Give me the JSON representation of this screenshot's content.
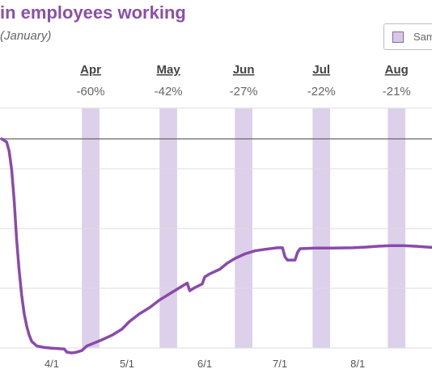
{
  "header": {
    "title": "in employees working",
    "subtitle": "(January)"
  },
  "legend": {
    "label": "Sam",
    "swatch_color": "#d8c8e6"
  },
  "colors": {
    "line": "#8a4aab",
    "band": "#ddd0ea",
    "grid": "#dddddd",
    "baseline": "#666666"
  },
  "chart_data": {
    "type": "line",
    "title": "in employees working",
    "subtitle": "(January)",
    "xlabel": "",
    "ylabel": "",
    "grid": "horizontal",
    "legend_position": "top-right",
    "x_tick_labels": [
      {
        "label": "4/1",
        "day": 0
      },
      {
        "label": "5/1",
        "day": 30
      },
      {
        "label": "6/1",
        "day": 61
      },
      {
        "label": "7/1",
        "day": 91
      },
      {
        "label": "8/1",
        "day": 122
      }
    ],
    "baseline_value": 0,
    "ylim": [
      -80,
      10
    ],
    "xlim": [
      -20,
      155
    ],
    "monthly_bands": [
      {
        "month": "Apr",
        "change": "-60%",
        "start_day": 12,
        "end_day": 19
      },
      {
        "month": "May",
        "change": "-42%",
        "start_day": 43,
        "end_day": 50
      },
      {
        "month": "Jun",
        "change": "-27%",
        "start_day": 73,
        "end_day": 80
      },
      {
        "month": "Jul",
        "change": "-22%",
        "start_day": 104,
        "end_day": 111
      },
      {
        "month": "Aug",
        "change": "-21%",
        "start_day": 134,
        "end_day": 141
      }
    ],
    "series": [
      {
        "points": [
          [
            -20,
            0
          ],
          [
            -18,
            -1
          ],
          [
            -17,
            -4
          ],
          [
            -16,
            -10
          ],
          [
            -15,
            -20
          ],
          [
            -14,
            -33
          ],
          [
            -13,
            -43
          ],
          [
            -12,
            -51
          ],
          [
            -11,
            -57
          ],
          [
            -10,
            -61
          ],
          [
            -9,
            -64
          ],
          [
            -8,
            -66
          ],
          [
            -6,
            -67.5
          ],
          [
            -3,
            -68
          ],
          [
            0,
            -68.2
          ],
          [
            3,
            -68.4
          ],
          [
            5,
            -68.5
          ],
          [
            6,
            -69.5
          ],
          [
            8,
            -69.8
          ],
          [
            10,
            -69.5
          ],
          [
            12,
            -69
          ],
          [
            14,
            -67.5
          ],
          [
            17,
            -66.5
          ],
          [
            20,
            -65.5
          ],
          [
            24,
            -64
          ],
          [
            28,
            -62
          ],
          [
            31,
            -59.5
          ],
          [
            35,
            -57
          ],
          [
            39,
            -55
          ],
          [
            43,
            -52.5
          ],
          [
            47,
            -50.5
          ],
          [
            51,
            -48.5
          ],
          [
            54,
            -47
          ],
          [
            55,
            -49.5
          ],
          [
            57,
            -48.5
          ],
          [
            60,
            -47.3
          ],
          [
            61,
            -45
          ],
          [
            63,
            -44
          ],
          [
            67,
            -42.5
          ],
          [
            70,
            -40.5
          ],
          [
            73,
            -39
          ],
          [
            77,
            -37.5
          ],
          [
            81,
            -36.5
          ],
          [
            85,
            -36
          ],
          [
            90,
            -35.5
          ],
          [
            92,
            -35.5
          ],
          [
            93,
            -38.5
          ],
          [
            94,
            -39.5
          ],
          [
            97,
            -39.5
          ],
          [
            98,
            -37
          ],
          [
            99,
            -35.8
          ],
          [
            105,
            -35.6
          ],
          [
            112,
            -35.6
          ],
          [
            120,
            -35.5
          ],
          [
            125,
            -35.3
          ],
          [
            130,
            -35
          ],
          [
            135,
            -34.8
          ],
          [
            140,
            -34.8
          ],
          [
            145,
            -35
          ],
          [
            150,
            -35.3
          ],
          [
            155,
            -35.5
          ]
        ]
      }
    ]
  }
}
